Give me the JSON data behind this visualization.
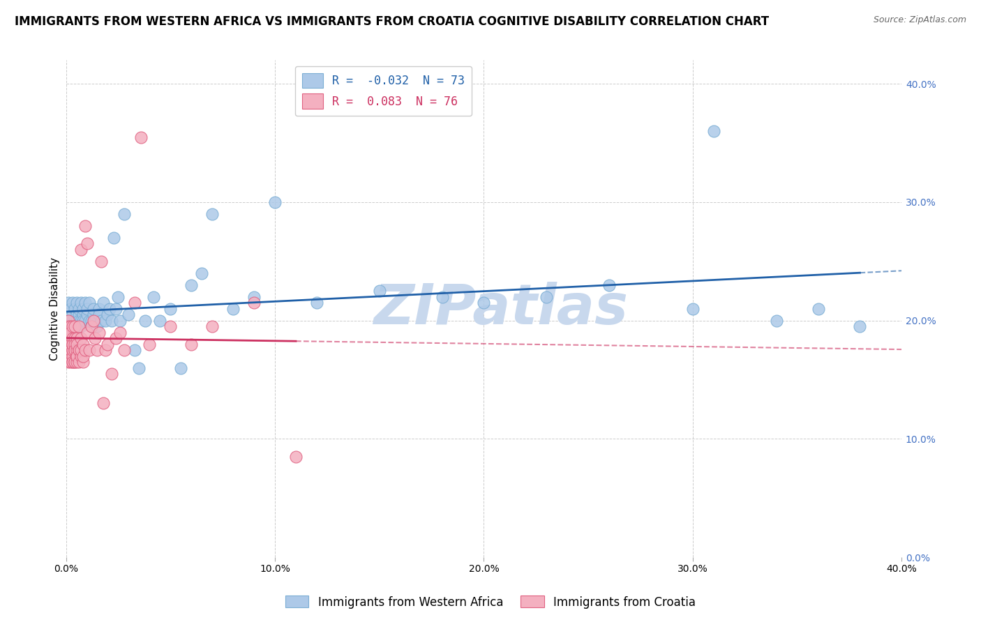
{
  "title": "IMMIGRANTS FROM WESTERN AFRICA VS IMMIGRANTS FROM CROATIA COGNITIVE DISABILITY CORRELATION CHART",
  "source": "Source: ZipAtlas.com",
  "ylabel": "Cognitive Disability",
  "watermark": "ZIPatlas",
  "series": [
    {
      "name": "Immigrants from Western Africa",
      "color": "#adc9e8",
      "edge_color": "#7aadd4",
      "line_color": "#2060a8",
      "line_style": "solid",
      "R": -0.032,
      "N": 73,
      "x_max_data": 0.38,
      "x": [
        0.001,
        0.001,
        0.002,
        0.002,
        0.003,
        0.003,
        0.003,
        0.004,
        0.004,
        0.004,
        0.005,
        0.005,
        0.005,
        0.005,
        0.006,
        0.006,
        0.006,
        0.007,
        0.007,
        0.007,
        0.008,
        0.008,
        0.008,
        0.009,
        0.009,
        0.01,
        0.01,
        0.011,
        0.011,
        0.012,
        0.012,
        0.013,
        0.013,
        0.014,
        0.015,
        0.016,
        0.016,
        0.017,
        0.018,
        0.019,
        0.02,
        0.021,
        0.022,
        0.023,
        0.024,
        0.025,
        0.026,
        0.028,
        0.03,
        0.033,
        0.035,
        0.038,
        0.042,
        0.045,
        0.05,
        0.055,
        0.06,
        0.065,
        0.07,
        0.08,
        0.09,
        0.1,
        0.12,
        0.15,
        0.18,
        0.2,
        0.23,
        0.26,
        0.3,
        0.31,
        0.34,
        0.36,
        0.38
      ],
      "y": [
        0.2,
        0.215,
        0.21,
        0.195,
        0.205,
        0.215,
        0.2,
        0.195,
        0.21,
        0.2,
        0.205,
        0.215,
        0.195,
        0.2,
        0.205,
        0.21,
        0.2,
        0.215,
        0.2,
        0.195,
        0.205,
        0.2,
        0.21,
        0.215,
        0.2,
        0.205,
        0.21,
        0.2,
        0.215,
        0.195,
        0.2,
        0.205,
        0.21,
        0.2,
        0.195,
        0.21,
        0.205,
        0.2,
        0.215,
        0.2,
        0.205,
        0.21,
        0.2,
        0.27,
        0.21,
        0.22,
        0.2,
        0.29,
        0.205,
        0.175,
        0.16,
        0.2,
        0.22,
        0.2,
        0.21,
        0.16,
        0.23,
        0.24,
        0.29,
        0.21,
        0.22,
        0.3,
        0.215,
        0.225,
        0.22,
        0.215,
        0.22,
        0.23,
        0.21,
        0.36,
        0.2,
        0.21,
        0.195
      ]
    },
    {
      "name": "Immigrants from Croatia",
      "color": "#f4b0c0",
      "edge_color": "#e06080",
      "line_color": "#cc3060",
      "line_style": "solid",
      "R": 0.083,
      "N": 76,
      "x_max_data": 0.11,
      "x": [
        0.001,
        0.001,
        0.001,
        0.001,
        0.001,
        0.001,
        0.001,
        0.001,
        0.002,
        0.002,
        0.002,
        0.002,
        0.002,
        0.002,
        0.002,
        0.002,
        0.002,
        0.003,
        0.003,
        0.003,
        0.003,
        0.003,
        0.003,
        0.003,
        0.003,
        0.003,
        0.004,
        0.004,
        0.004,
        0.004,
        0.004,
        0.004,
        0.004,
        0.005,
        0.005,
        0.005,
        0.005,
        0.005,
        0.005,
        0.006,
        0.006,
        0.006,
        0.006,
        0.007,
        0.007,
        0.007,
        0.007,
        0.008,
        0.008,
        0.008,
        0.009,
        0.009,
        0.01,
        0.01,
        0.011,
        0.012,
        0.013,
        0.014,
        0.015,
        0.016,
        0.017,
        0.018,
        0.019,
        0.02,
        0.022,
        0.024,
        0.026,
        0.028,
        0.033,
        0.036,
        0.04,
        0.05,
        0.06,
        0.07,
        0.09,
        0.11
      ],
      "y": [
        0.2,
        0.195,
        0.185,
        0.175,
        0.165,
        0.18,
        0.17,
        0.19,
        0.195,
        0.18,
        0.17,
        0.185,
        0.175,
        0.165,
        0.19,
        0.18,
        0.175,
        0.185,
        0.175,
        0.165,
        0.195,
        0.18,
        0.17,
        0.175,
        0.165,
        0.18,
        0.185,
        0.175,
        0.165,
        0.18,
        0.195,
        0.165,
        0.175,
        0.17,
        0.175,
        0.165,
        0.185,
        0.18,
        0.17,
        0.175,
        0.165,
        0.195,
        0.175,
        0.26,
        0.17,
        0.185,
        0.175,
        0.165,
        0.18,
        0.17,
        0.28,
        0.175,
        0.265,
        0.19,
        0.175,
        0.195,
        0.2,
        0.185,
        0.175,
        0.19,
        0.25,
        0.13,
        0.175,
        0.18,
        0.155,
        0.185,
        0.19,
        0.175,
        0.215,
        0.355,
        0.18,
        0.195,
        0.18,
        0.195,
        0.215,
        0.085
      ]
    }
  ],
  "xlim": [
    0.0,
    0.4
  ],
  "ylim": [
    0.0,
    0.42
  ],
  "xticks": [
    0.0,
    0.1,
    0.2,
    0.3,
    0.4
  ],
  "xticklabels": [
    "0.0%",
    "10.0%",
    "20.0%",
    "30.0%",
    "40.0%"
  ],
  "yticks_right": [
    0.0,
    0.1,
    0.2,
    0.3,
    0.4
  ],
  "yticklabels_right": [
    "0.0%",
    "10.0%",
    "20.0%",
    "30.0%",
    "40.0%"
  ],
  "grid_color": "#cccccc",
  "background_color": "#ffffff",
  "watermark_color": "#c8d8ed",
  "watermark_fontsize": 58,
  "title_fontsize": 12,
  "axis_label_fontsize": 11,
  "tick_fontsize": 10,
  "legend_fontsize": 12
}
